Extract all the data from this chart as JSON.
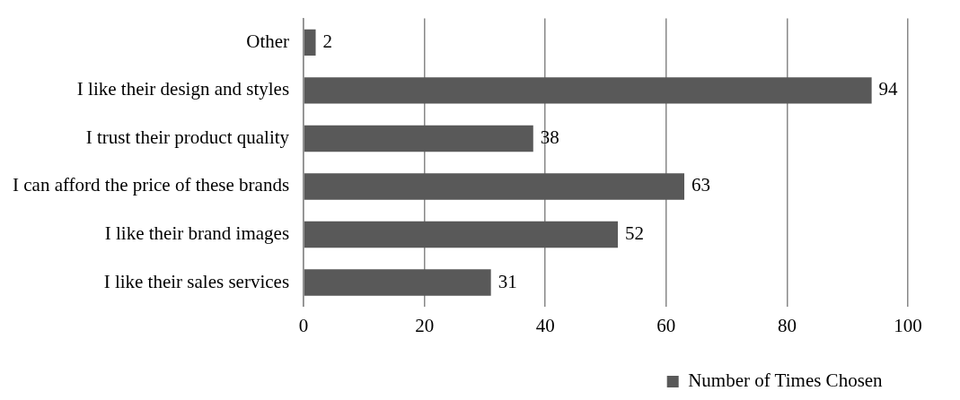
{
  "chart_data": {
    "type": "bar",
    "orientation": "horizontal",
    "categories": [
      "Other",
      "I like their design and styles",
      "I trust their product quality",
      "I can afford the price of these brands",
      "I like their brand images",
      "I like their sales services"
    ],
    "series": [
      {
        "name": "Number of Times Chosen",
        "color": "#595959",
        "values": [
          2,
          94,
          38,
          63,
          52,
          31
        ]
      }
    ],
    "xlim": [
      0,
      100
    ],
    "xticks": [
      0,
      20,
      40,
      60,
      80,
      100
    ],
    "grid": "x",
    "legend": "bottom right",
    "data_labels": true
  }
}
